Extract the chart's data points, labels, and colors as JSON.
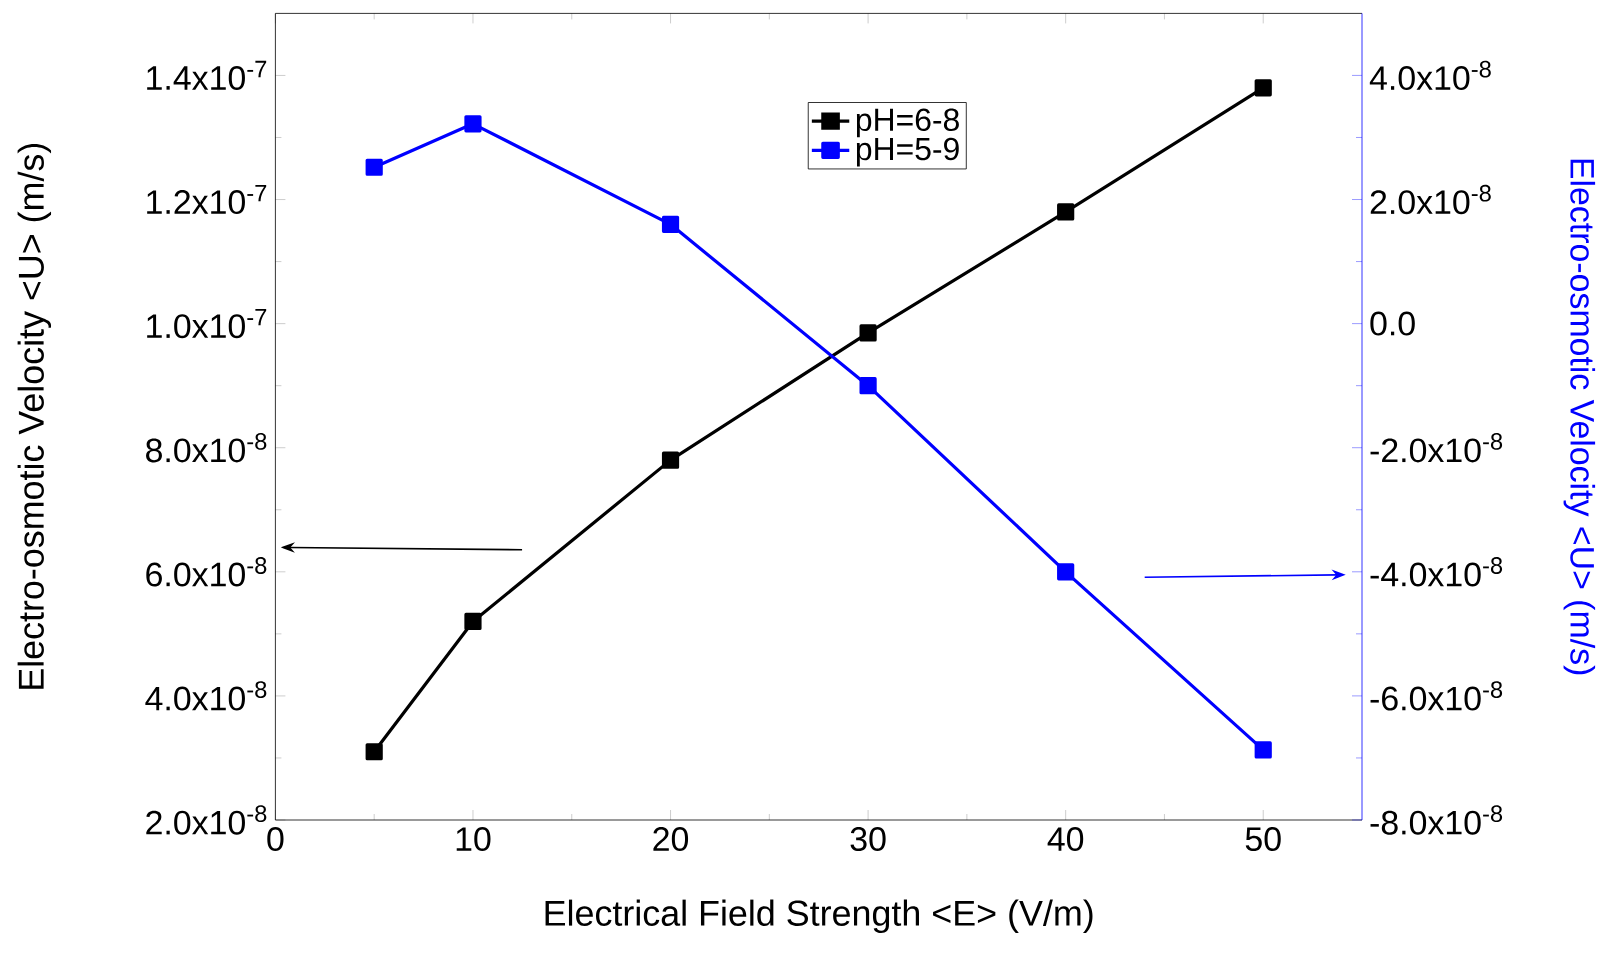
{
  "chart_data": {
    "type": "line",
    "xlabel": "Electrical Field Strength <E>  (V/m)",
    "ylabel": "Electro-osmotic Velocity <U>  (m/s)",
    "y2label": "Electro-osmotic Velocity <U>  (m/s)",
    "x": [
      5,
      10,
      20,
      30,
      40,
      50
    ],
    "series": [
      {
        "name": "pH=6-8",
        "color": "#000000",
        "values": [
          3.1e-08,
          5.2e-08,
          7.8e-08,
          9.85e-08,
          1.18e-07,
          1.38e-07
        ]
      },
      {
        "name": "pH=5-9",
        "color": "#0000ff",
        "axis": "y2",
        "values": [
          2.52e-08,
          3.22e-08,
          1.6e-08,
          -1e-08,
          -4e-08,
          -6.87e-08
        ]
      }
    ],
    "xlim": [
      0,
      55
    ],
    "xticks": [
      0,
      10,
      20,
      30,
      40,
      50
    ],
    "ylim": [
      2e-08,
      1.5e-07
    ],
    "yticks": [
      {
        "value": 2e-08,
        "label": "2.0x10$^{-8}$"
      },
      {
        "value": 4e-08,
        "label": "4.0x10$^{-8}$"
      },
      {
        "value": 6e-08,
        "label": "6.0x10$^{-8}$"
      },
      {
        "value": 8e-08,
        "label": "8.0x10$^{-8}$"
      },
      {
        "value": 1e-07,
        "label": "1.0x10$^{-7}$"
      },
      {
        "value": 1.2e-07,
        "label": "1.2x10$^{-7}$"
      },
      {
        "value": 1.4e-07,
        "label": "1.4x10$^{-7}$"
      }
    ],
    "y2lim": [
      -8e-08,
      5e-08
    ],
    "y2ticks": [
      {
        "value": -8e-08,
        "label": "-8.0x10$^{-8}$"
      },
      {
        "value": -6e-08,
        "label": "-6.0x10$^{-8}$"
      },
      {
        "value": -4e-08,
        "label": "-4.0x10$^{-8}$"
      },
      {
        "value": -2e-08,
        "label": "-2.0x10$^{-8}$"
      },
      {
        "value": 0,
        "label": "0.0"
      },
      {
        "value": 2e-08,
        "label": "2.0x10$^{-8}$"
      },
      {
        "value": 4e-08,
        "label": "4.0x10$^{-8}$"
      }
    ],
    "legend": "top",
    "marker": "square",
    "line_style": "solid",
    "grid": false
  }
}
